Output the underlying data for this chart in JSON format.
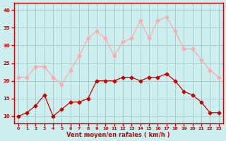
{
  "hours": [
    0,
    1,
    2,
    3,
    4,
    5,
    6,
    7,
    8,
    9,
    10,
    11,
    12,
    13,
    14,
    15,
    16,
    17,
    18,
    19,
    20,
    21,
    22,
    23
  ],
  "wind_avg": [
    10,
    11,
    13,
    16,
    10,
    12,
    14,
    14,
    15,
    20,
    20,
    20,
    21,
    21,
    20,
    21,
    21,
    22,
    20,
    17,
    16,
    14,
    11,
    11
  ],
  "wind_gust": [
    21,
    21,
    24,
    24,
    21,
    19,
    23,
    27,
    32,
    34,
    32,
    27,
    31,
    32,
    37,
    32,
    37,
    38,
    34,
    29,
    29,
    26,
    23,
    21
  ],
  "wind_avg_color": "#cc0000",
  "wind_gust_color": "#ffaaaa",
  "bg_color": "#cceeee",
  "grid_color": "#aacccc",
  "xlabel": "Vent moyen/en rafales ( km/h )",
  "xlabel_color": "#cc0000",
  "yticks": [
    10,
    15,
    20,
    25,
    30,
    35,
    40
  ],
  "ylim": [
    8,
    42
  ],
  "xlim": [
    -0.5,
    23.5
  ]
}
